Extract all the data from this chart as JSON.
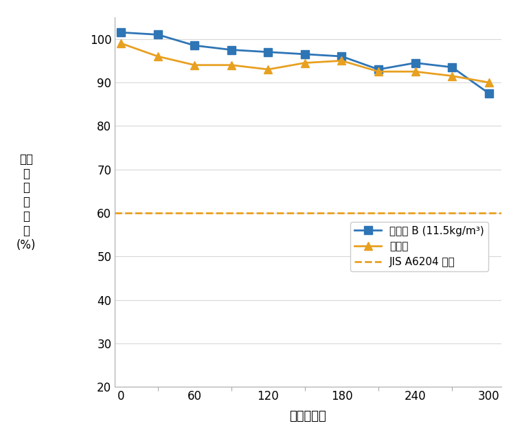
{
  "series_b_x": [
    0,
    30,
    60,
    90,
    120,
    150,
    180,
    210,
    240,
    270,
    300
  ],
  "series_b_y": [
    101.5,
    101.0,
    98.5,
    97.5,
    97.0,
    96.5,
    96.0,
    93.0,
    94.5,
    93.5,
    87.5
  ],
  "series_noadditive_x": [
    0,
    30,
    60,
    90,
    120,
    150,
    180,
    210,
    240,
    270,
    300
  ],
  "series_noadditive_y": [
    99.0,
    96.0,
    94.0,
    94.0,
    93.0,
    94.5,
    95.0,
    92.5,
    92.5,
    91.5,
    90.0
  ],
  "jis_y": 60,
  "color_b": "#2E75B6",
  "color_noadditive": "#E8A020",
  "color_jis": "#E8A020",
  "label_b": "添加例 B (11.5kg/m³)",
  "label_noadditive": "無添加",
  "label_jis": "JIS A6204 下限",
  "ylabel_chars": [
    "相対",
    "動",
    "弾",
    "性",
    "係",
    "数",
    "(%)"
  ],
  "xlabel": "サイクル数",
  "ylim": [
    20,
    105
  ],
  "xlim": [
    -5,
    310
  ],
  "yticks": [
    20,
    30,
    40,
    50,
    60,
    70,
    80,
    90,
    100
  ],
  "xticks": [
    0,
    60,
    120,
    180,
    240,
    300
  ],
  "minor_xticks": [
    30,
    90,
    150,
    210,
    270
  ],
  "figsize": [
    7.6,
    6.26
  ],
  "dpi": 100
}
